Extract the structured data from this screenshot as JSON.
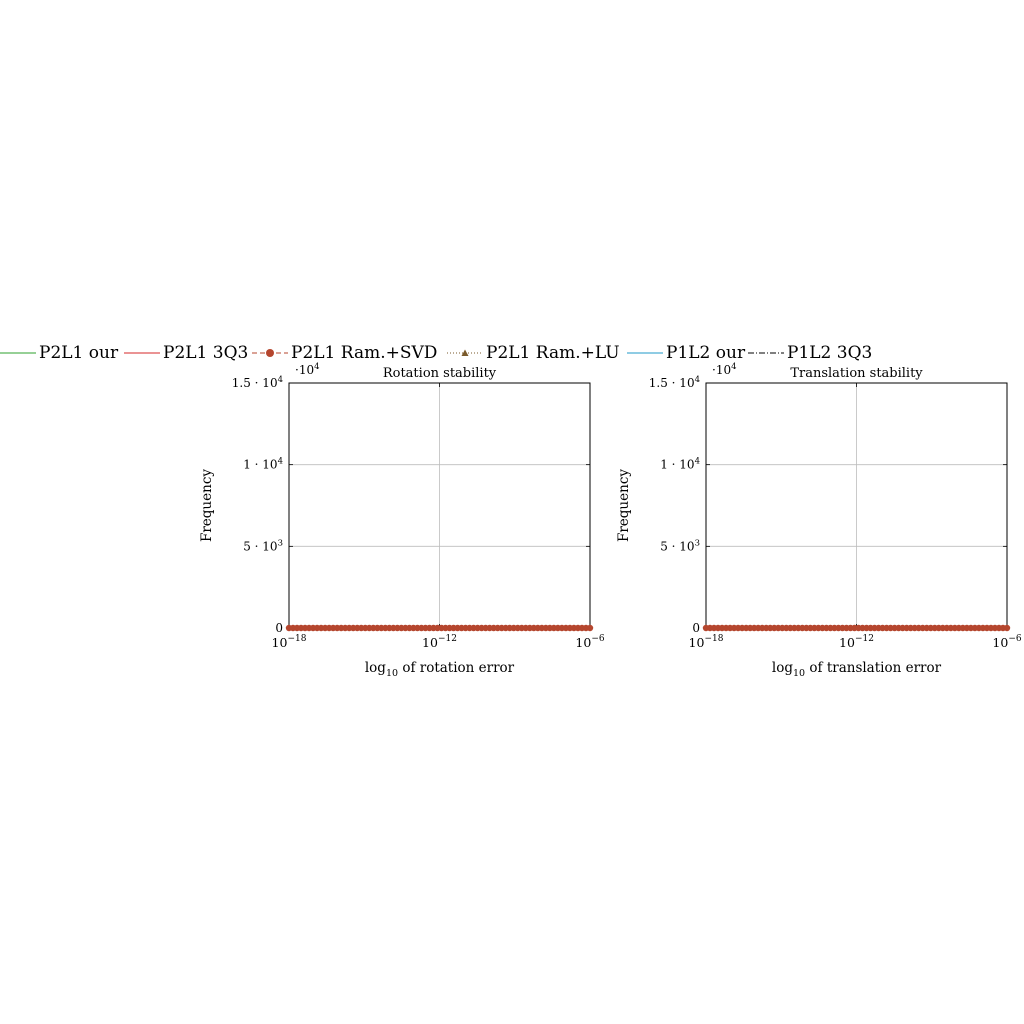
{
  "legend": [
    {
      "name": "P2L1 our",
      "color": "#2ca02c",
      "dash": "solid",
      "marker": "none"
    },
    {
      "name": "P2L1 3Q3",
      "color": "#d62728",
      "dash": "solid",
      "marker": "none"
    },
    {
      "name": "P2L1 Ram.+SVD",
      "color": "#b5462e",
      "dash": "dashed",
      "marker": "circle"
    },
    {
      "name": "P2L1 Ram.+LU",
      "color": "#7a5a2b",
      "dash": "dotted",
      "marker": "triangle"
    },
    {
      "name": "P1L2 our",
      "color": "#1f9ac9",
      "dash": "solid",
      "marker": "none"
    },
    {
      "name": "P1L2 3Q3",
      "color": "#000000",
      "dash": "dashdot",
      "marker": "none"
    }
  ],
  "chart_data": [
    {
      "type": "line",
      "title": "Rotation stability",
      "xlabel": "log10 of rotation error",
      "xlabel_prefix": "log",
      "xlabel_sub": "10",
      "xlabel_suffix": " of rotation error",
      "ylabel": "Frequency",
      "y_multiplier_label": "·10",
      "y_multiplier_exp": "4",
      "xlim": [
        -18,
        -6
      ],
      "x_scale": "log",
      "x_ticks": [
        {
          "base": "10",
          "exp": "−18",
          "value": -18
        },
        {
          "base": "10",
          "exp": "−12",
          "value": -12
        },
        {
          "base": "10",
          "exp": "−6",
          "value": -6
        }
      ],
      "ylim": [
        0,
        15000
      ],
      "y_ticks": [
        {
          "value": 0,
          "label": "0",
          "exp": ""
        },
        {
          "value": 5000,
          "label": "5 · 10",
          "exp": "3"
        },
        {
          "value": 10000,
          "label": "1 · 10",
          "exp": "4"
        },
        {
          "value": 15000,
          "label": "1.5 · 10",
          "exp": "4"
        }
      ],
      "grid": true,
      "series": [
        {
          "name": "P2L1 Ram.+SVD",
          "marker": "circle",
          "color": "#b5462e",
          "x_range": [
            -18,
            -6
          ],
          "y_constant": 0
        }
      ]
    },
    {
      "type": "line",
      "title": "Translation stability",
      "xlabel": "log10 of translation error",
      "xlabel_prefix": "log",
      "xlabel_sub": "10",
      "xlabel_suffix": " of translation error",
      "ylabel": "Frequency",
      "y_multiplier_label": "·10",
      "y_multiplier_exp": "4",
      "xlim": [
        -18,
        -6
      ],
      "x_scale": "log",
      "x_ticks": [
        {
          "base": "10",
          "exp": "−18",
          "value": -18
        },
        {
          "base": "10",
          "exp": "−12",
          "value": -12
        },
        {
          "base": "10",
          "exp": "−6",
          "value": -6
        }
      ],
      "ylim": [
        0,
        15000
      ],
      "y_ticks": [
        {
          "value": 0,
          "label": "0",
          "exp": ""
        },
        {
          "value": 5000,
          "label": "5 · 10",
          "exp": "3"
        },
        {
          "value": 10000,
          "label": "1 · 10",
          "exp": "4"
        },
        {
          "value": 15000,
          "label": "1.5 · 10",
          "exp": "4"
        }
      ],
      "grid": true,
      "series": [
        {
          "name": "P2L1 Ram.+SVD",
          "marker": "circle",
          "color": "#b5462e",
          "x_range": [
            -18,
            -6
          ],
          "y_constant": 0
        }
      ]
    }
  ]
}
